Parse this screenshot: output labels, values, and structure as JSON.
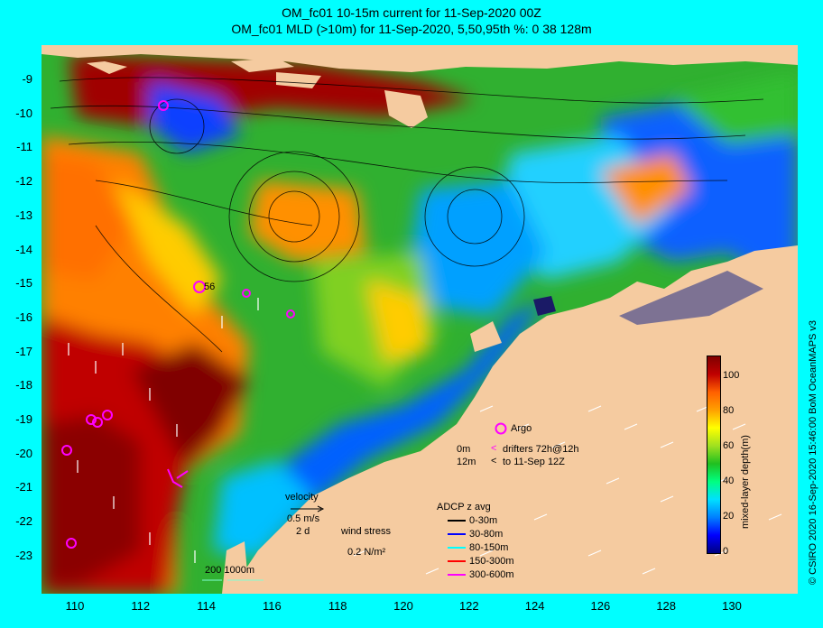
{
  "title_line1": "OM_fc01 10-15m current for 11-Sep-2020 00Z",
  "title_line2": "OM_fc01 MLD (>10m) for 11-Sep-2020, 5,50,95th %: 0   38  128m",
  "credit": "© CSIRO 2020  16-Sep-2020 15:46:00 BoM OceanMAPS v3",
  "y_ticks": [
    "-9",
    "-10",
    "-11",
    "-12",
    "-13",
    "-14",
    "-15",
    "-16",
    "-17",
    "-18",
    "-19",
    "-20",
    "-21",
    "-22",
    "-23"
  ],
  "x_ticks": [
    "110",
    "112",
    "114",
    "116",
    "118",
    "120",
    "122",
    "124",
    "126",
    "128",
    "130"
  ],
  "colorbar": {
    "title": "mixed-layer depth(m)",
    "ticks": [
      "0",
      "20",
      "40",
      "60",
      "80",
      "100"
    ],
    "range": [
      0,
      112
    ],
    "colors": [
      "#000080",
      "#0000ff",
      "#0080ff",
      "#00e0ff",
      "#00ff80",
      "#20c020",
      "#a0e020",
      "#ffff00",
      "#ffa000",
      "#ff6000",
      "#c00000",
      "#800000"
    ]
  },
  "annotations": {
    "argo": "Argo",
    "drifter_0m": "0m",
    "drifter_12m": "12m",
    "drifters": "drifters 72h@12h",
    "to_date": "to 11-Sep 12Z",
    "velocity": "velocity",
    "velocity_scale": "0.5 m/s",
    "velocity_days": "2 d",
    "wind_stress": "wind stress",
    "wind_scale": "0.2 N/m²",
    "depth_contours": "200  1000m",
    "station_label": "56"
  },
  "adcp": {
    "title": "ADCP z avg",
    "rows": [
      {
        "label": "0-30m",
        "color": "#000000"
      },
      {
        "label": "30-80m",
        "color": "#0000ff"
      },
      {
        "label": "80-150m",
        "color": "#00ffff"
      },
      {
        "label": "150-300m",
        "color": "#ff0000"
      },
      {
        "label": "300-600m",
        "color": "#ff00ff"
      }
    ]
  },
  "map_colors": {
    "land": "#f5cba0",
    "ocean_bg": "#20b020",
    "deep": "#800000"
  }
}
